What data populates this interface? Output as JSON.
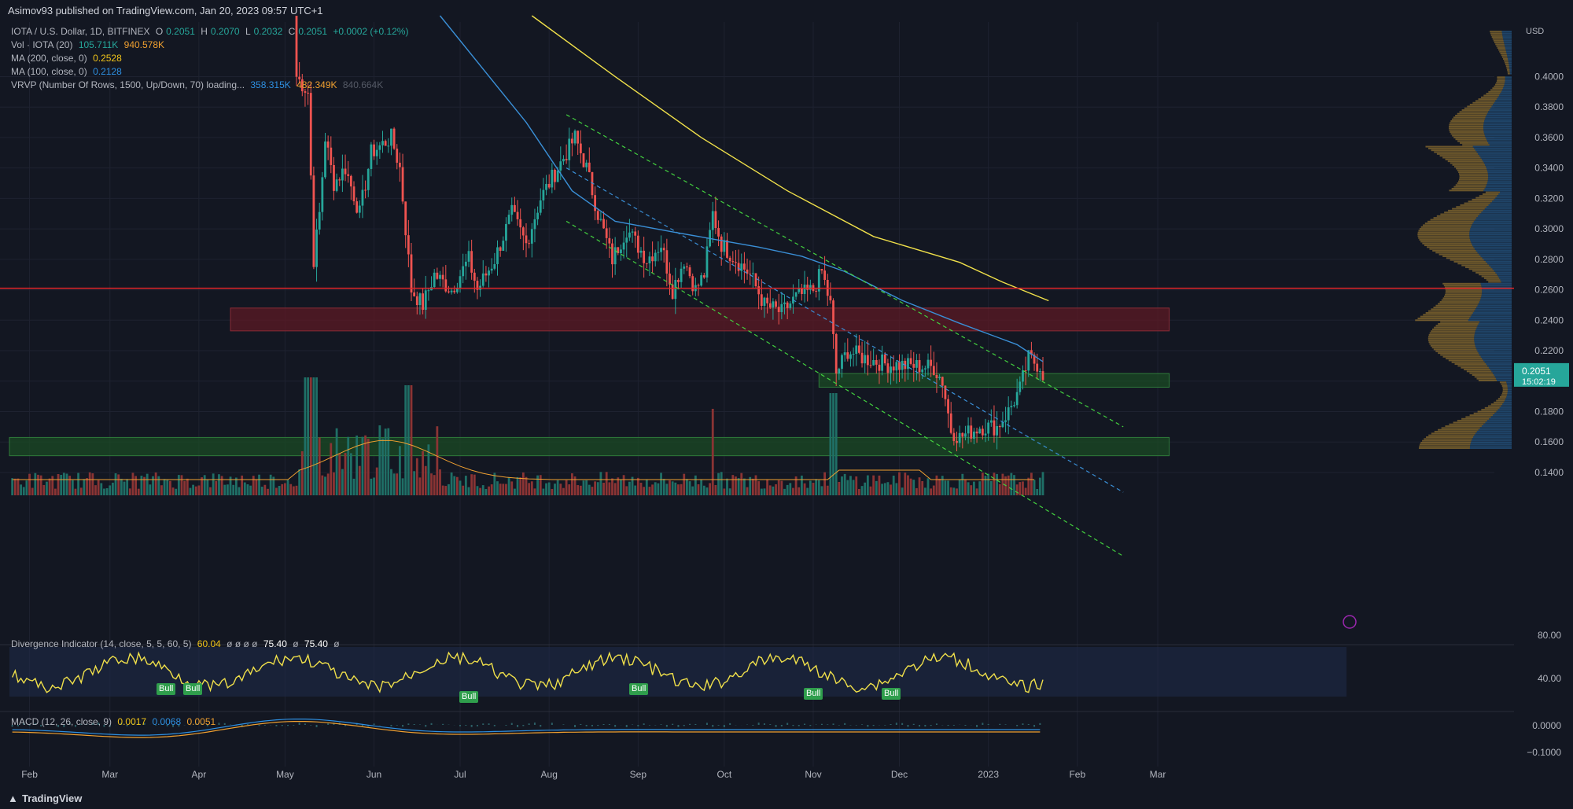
{
  "header": {
    "published": "Asimov93 published on TradingView.com, Jan 20, 2023 09:57 UTC+1"
  },
  "legend": {
    "symbol": "IOTA / U.S. Dollar, 1D, BITFINEX",
    "o_label": "O",
    "o": "0.2051",
    "h_label": "H",
    "h": "0.2070",
    "l_label": "L",
    "l": "0.2032",
    "c_label": "C",
    "c": "0.2051",
    "change": "+0.0002 (+0.12%)",
    "vol_label": "Vol · IOTA (20)",
    "vol1": "105.711K",
    "vol2": "940.578K",
    "ma200_label": "MA (200, close, 0)",
    "ma200": "0.2528",
    "ma100_label": "MA (100, close, 0)",
    "ma100": "0.2128",
    "vrvp_label": "VRVP (Number Of Rows, 1500, Up/Down, 70) loading...",
    "vrvp1": "358.315K",
    "vrvp2": "482.349K",
    "vrvp3": "840.664K"
  },
  "divergence": {
    "label": "Divergence Indicator (14, close, 5, 5, 60, 5)",
    "v1": "60.04",
    "phi": "ø ø ø ø",
    "v2": "75.40",
    "phi2": "ø",
    "v3": "75.40",
    "phi3": "ø",
    "bull_label": "Bull",
    "axis": [
      "80.00",
      "40.00"
    ]
  },
  "macd": {
    "label": "MACD (12, 26, close, 9)",
    "v1": "0.0017",
    "v2": "0.0068",
    "v3": "0.0051",
    "axis": [
      "0.0000",
      "−0.1000"
    ]
  },
  "price_axis": {
    "currency": "USD",
    "ticks": [
      "0.4000",
      "0.3800",
      "0.3600",
      "0.3400",
      "0.3200",
      "0.3000",
      "0.2800",
      "0.2600",
      "0.2400",
      "0.2200",
      "0.1800",
      "0.1600",
      "0.1400"
    ],
    "last_price": "0.2051",
    "countdown": "15:02:19"
  },
  "time_axis": [
    "Feb",
    "Mar",
    "Apr",
    "May",
    "Jun",
    "Jul",
    "Aug",
    "Sep",
    "Oct",
    "Nov",
    "Dec",
    "2023",
    "Feb",
    "Mar"
  ],
  "footer": {
    "brand": "TradingView"
  },
  "colors": {
    "background": "#131722",
    "up": "#26a69a",
    "down": "#ef5350",
    "ma200": "#f0e04a",
    "ma100": "#3a8fd6",
    "channel": "#43d13f",
    "resistance": "#e0262a",
    "zone_red": "#5c1a24",
    "zone_green": "#1b4b24"
  },
  "chart_data": {
    "type": "candlestick",
    "title": "IOTA / U.S. Dollar, 1D, BITFINEX",
    "x_range": [
      "2022-01-25",
      "2023-03-05"
    ],
    "ylim": [
      0.125,
      0.44
    ],
    "y_scale": "linear",
    "grid": true,
    "anchors": [
      [
        "2022-05-05",
        0.4
      ],
      [
        "2022-05-09",
        0.39
      ],
      [
        "2022-05-11",
        0.28
      ],
      [
        "2022-05-13",
        0.31
      ],
      [
        "2022-05-15",
        0.36
      ],
      [
        "2022-05-18",
        0.33
      ],
      [
        "2022-05-22",
        0.34
      ],
      [
        "2022-05-27",
        0.31
      ],
      [
        "2022-05-31",
        0.35
      ],
      [
        "2022-06-07",
        0.36
      ],
      [
        "2022-06-10",
        0.34
      ],
      [
        "2022-06-14",
        0.26
      ],
      [
        "2022-06-18",
        0.25
      ],
      [
        "2022-06-22",
        0.27
      ],
      [
        "2022-06-28",
        0.26
      ],
      [
        "2022-07-04",
        0.28
      ],
      [
        "2022-07-07",
        0.26
      ],
      [
        "2022-07-13",
        0.28
      ],
      [
        "2022-07-19",
        0.31
      ],
      [
        "2022-07-24",
        0.29
      ],
      [
        "2022-07-29",
        0.32
      ],
      [
        "2022-08-04",
        0.34
      ],
      [
        "2022-08-10",
        0.36
      ],
      [
        "2022-08-14",
        0.34
      ],
      [
        "2022-08-18",
        0.31
      ],
      [
        "2022-08-23",
        0.28
      ],
      [
        "2022-08-28",
        0.3
      ],
      [
        "2022-09-04",
        0.28
      ],
      [
        "2022-09-09",
        0.29
      ],
      [
        "2022-09-13",
        0.26
      ],
      [
        "2022-09-17",
        0.28
      ],
      [
        "2022-09-21",
        0.26
      ],
      [
        "2022-09-24",
        0.27
      ],
      [
        "2022-09-27",
        0.31
      ],
      [
        "2022-09-30",
        0.29
      ],
      [
        "2022-10-05",
        0.28
      ],
      [
        "2022-10-10",
        0.27
      ],
      [
        "2022-10-15",
        0.25
      ],
      [
        "2022-10-21",
        0.245
      ],
      [
        "2022-10-26",
        0.255
      ],
      [
        "2022-11-01",
        0.26
      ],
      [
        "2022-11-04",
        0.272
      ],
      [
        "2022-11-07",
        0.25
      ],
      [
        "2022-11-09",
        0.205
      ],
      [
        "2022-11-13",
        0.22
      ],
      [
        "2022-11-19",
        0.215
      ],
      [
        "2022-11-27",
        0.211
      ],
      [
        "2022-12-06",
        0.21
      ],
      [
        "2022-12-13",
        0.209
      ],
      [
        "2022-12-16",
        0.2
      ],
      [
        "2022-12-19",
        0.168
      ],
      [
        "2022-12-22",
        0.163
      ],
      [
        "2022-12-29",
        0.17
      ],
      [
        "2023-01-04",
        0.17
      ],
      [
        "2023-01-08",
        0.18
      ],
      [
        "2023-01-12",
        0.195
      ],
      [
        "2023-01-15",
        0.215
      ],
      [
        "2023-01-19",
        0.21
      ],
      [
        "2023-01-20",
        0.2051
      ]
    ],
    "ma200": [
      [
        "2022-07-26",
        0.44
      ],
      [
        "2022-08-24",
        0.4
      ],
      [
        "2022-09-23",
        0.36
      ],
      [
        "2022-10-23",
        0.325
      ],
      [
        "2022-11-22",
        0.295
      ],
      [
        "2022-12-22",
        0.278
      ],
      [
        "2023-01-06",
        0.265
      ],
      [
        "2023-01-22",
        0.2528
      ]
    ],
    "ma100": [
      [
        "2022-06-24",
        0.44
      ],
      [
        "2022-07-24",
        0.37
      ],
      [
        "2022-08-09",
        0.325
      ],
      [
        "2022-08-24",
        0.305
      ],
      [
        "2022-09-13",
        0.298
      ],
      [
        "2022-09-28",
        0.293
      ],
      [
        "2022-10-13",
        0.288
      ],
      [
        "2022-10-28",
        0.282
      ],
      [
        "2022-11-12",
        0.272
      ],
      [
        "2022-12-02",
        0.253
      ],
      [
        "2022-12-22",
        0.238
      ],
      [
        "2023-01-11",
        0.224
      ],
      [
        "2023-01-20",
        0.2128
      ]
    ],
    "resistance_level": 0.261,
    "zones": [
      {
        "color": "red",
        "y": [
          0.233,
          0.248
        ],
        "x": [
          "2022-04-12",
          "2023-03-05"
        ]
      },
      {
        "color": "green",
        "y": [
          0.196,
          0.205
        ],
        "x": [
          "2022-11-03",
          "2023-03-05"
        ]
      },
      {
        "color": "green",
        "y": [
          0.151,
          0.163
        ],
        "x": [
          "2022-01-25",
          "2023-03-05"
        ]
      }
    ],
    "channel": [
      {
        "name": "upper",
        "from": [
          "2022-08-07",
          0.375
        ],
        "to": [
          "2023-02-17",
          0.17
        ]
      },
      {
        "name": "lower",
        "from": [
          "2022-08-07",
          0.305
        ],
        "to": [
          "2023-02-17",
          0.085
        ]
      },
      {
        "name": "mid",
        "from": [
          "2022-08-07",
          0.34
        ],
        "to": [
          "2023-02-17",
          0.127
        ]
      }
    ]
  }
}
